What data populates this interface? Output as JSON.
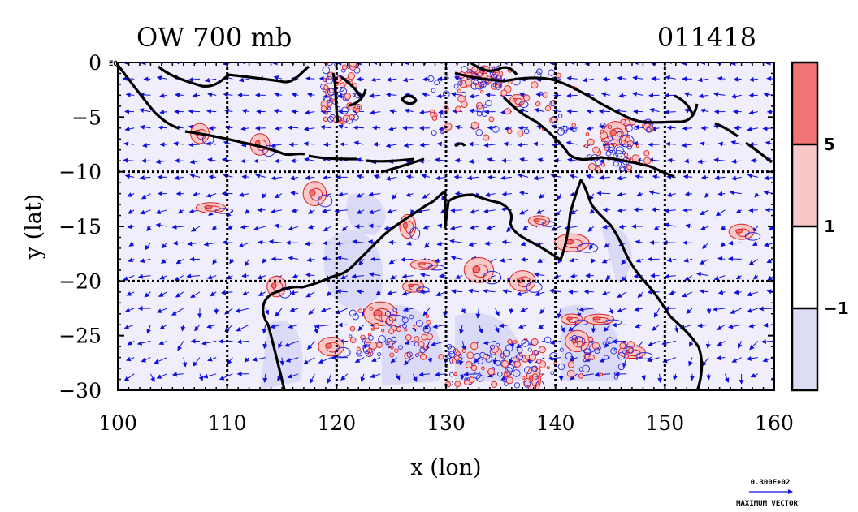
{
  "chart_data": {
    "type": "heatmap",
    "title_left": "OW 700 mb",
    "title_right": "011418",
    "xlabel": "x (lon)",
    "ylabel": "y (lat)",
    "xlim": [
      100,
      160
    ],
    "ylim": [
      -30,
      0
    ],
    "x_ticks": [
      100,
      110,
      120,
      130,
      140,
      150,
      160
    ],
    "x_tick_labels": [
      "100",
      "110",
      "120",
      "130",
      "140",
      "150",
      "160"
    ],
    "y_ticks": [
      0,
      -5,
      -10,
      -15,
      -20,
      -25,
      -30
    ],
    "y_tick_labels": [
      "0",
      "−5",
      "−10",
      "−15",
      "−20",
      "−25",
      "−30"
    ],
    "corner_label": "EQ",
    "grid_lines": {
      "lon": [
        110,
        120,
        130,
        140,
        150
      ],
      "lat": [
        -10,
        -20
      ]
    },
    "colorbar": {
      "levels": [
        -1,
        1,
        5
      ],
      "labels": [
        "−1",
        "1",
        "5"
      ],
      "colors": [
        "#dcdcf4",
        "#ffffff",
        "#f8c8c8",
        "#f07474"
      ]
    },
    "vector_legend": {
      "value_label": "0.300E+02",
      "caption": "MAXIMUM VECTOR"
    },
    "colors": {
      "positive_contour": "#e02020",
      "negative_contour": "#2828e0",
      "vector": "#1010e0",
      "coastline": "#000000"
    },
    "positive_regions": [
      {
        "lon": 108.5,
        "lat": -13.3
      },
      {
        "lon": 118.0,
        "lat": -12.0
      },
      {
        "lon": 126.5,
        "lat": -15.0
      },
      {
        "lon": 128.0,
        "lat": -18.5
      },
      {
        "lon": 133.0,
        "lat": -19.0
      },
      {
        "lon": 137.0,
        "lat": -20.0
      },
      {
        "lon": 138.5,
        "lat": -14.5
      },
      {
        "lon": 141.5,
        "lat": -16.5
      },
      {
        "lon": 127.0,
        "lat": -20.5
      },
      {
        "lon": 114.5,
        "lat": -20.5
      },
      {
        "lon": 119.5,
        "lat": -26.0
      },
      {
        "lon": 124.0,
        "lat": -23.0
      },
      {
        "lon": 138.0,
        "lat": -29.0
      },
      {
        "lon": 144.0,
        "lat": -23.5
      },
      {
        "lon": 141.5,
        "lat": -23.5
      },
      {
        "lon": 142.0,
        "lat": -25.5
      },
      {
        "lon": 147.0,
        "lat": -26.5
      },
      {
        "lon": 157.0,
        "lat": -15.5
      },
      {
        "lon": 136.5,
        "lat": -3.5
      },
      {
        "lon": 145.5,
        "lat": -6.5
      },
      {
        "lon": 107.5,
        "lat": -6.5
      },
      {
        "lon": 113.0,
        "lat": -7.5
      }
    ]
  }
}
